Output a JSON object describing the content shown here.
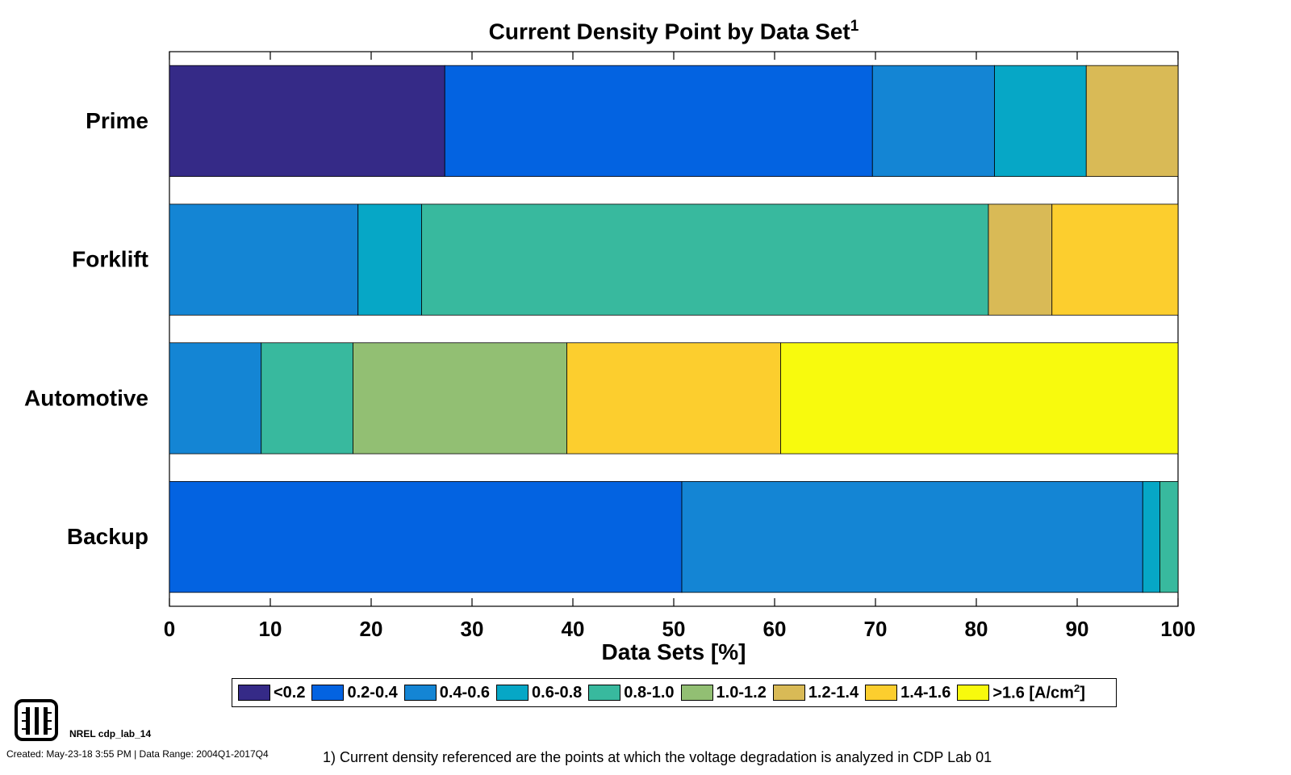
{
  "chart_data": {
    "type": "bar",
    "orientation": "horizontal",
    "stacked": true,
    "title": "Current Density Point by Data Set",
    "title_superscript": "1",
    "xlabel": "Data Sets [%]",
    "ylabel": "",
    "xlim": [
      0,
      100
    ],
    "x_ticks": [
      "0",
      "10",
      "20",
      "30",
      "40",
      "50",
      "60",
      "70",
      "80",
      "90",
      "100"
    ],
    "categories": [
      "Prime",
      "Forklift",
      "Automotive",
      "Backup"
    ],
    "series": [
      {
        "name": "<0.2",
        "color": "#352A87",
        "values": [
          27.3,
          0,
          0,
          0
        ]
      },
      {
        "name": "0.2-0.4",
        "color": "#0363E1",
        "values": [
          42.4,
          0,
          0,
          50.8
        ]
      },
      {
        "name": "0.4-0.6",
        "color": "#1485D4",
        "values": [
          12.1,
          18.7,
          9.1,
          45.7
        ]
      },
      {
        "name": "0.6-0.8",
        "color": "#06A7C6",
        "values": [
          9.1,
          6.3,
          0,
          1.7
        ]
      },
      {
        "name": "0.8-1.0",
        "color": "#38B99E",
        "values": [
          0,
          56.2,
          9.1,
          1.8
        ]
      },
      {
        "name": "1.0-1.2",
        "color": "#92BF73",
        "values": [
          0,
          0,
          21.2,
          0
        ]
      },
      {
        "name": "1.2-1.4",
        "color": "#D9BA56",
        "values": [
          9.1,
          6.3,
          0,
          0
        ]
      },
      {
        "name": "1.4-1.6",
        "color": "#FCCE2E",
        "values": [
          0,
          12.5,
          21.2,
          0
        ]
      },
      {
        "name": ">1.6",
        "color": "#F8FA0D",
        "values": [
          0,
          0,
          39.4,
          0
        ]
      }
    ],
    "legend": {
      "placement": "bottom",
      "unit_suffix": " [A/cm",
      "unit_superscript": "2",
      "unit_close": "]"
    },
    "grid": false
  },
  "footer": {
    "lab_name": "NREL cdp_lab_14",
    "created": "Created: May-23-18  3:55 PM | Data Range: 2004Q1-2017Q4",
    "footnote": "1) Current density referenced are the points at which the voltage degradation is analyzed in CDP Lab 01"
  }
}
